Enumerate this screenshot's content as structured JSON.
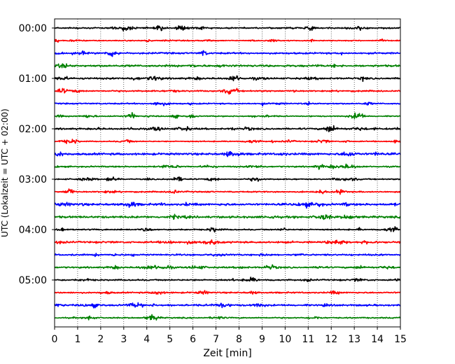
{
  "chart_data": {
    "type": "line",
    "title": "",
    "xlabel": "Zeit  [min]",
    "ylabel": "UTC (Lokalzeit = UTC + 02:00)",
    "xlim": [
      0,
      15
    ],
    "x_ticks": [
      0,
      1,
      2,
      3,
      4,
      5,
      6,
      7,
      8,
      9,
      10,
      11,
      12,
      13,
      14,
      15
    ],
    "x_grid": "vertical dotted lines at each minute",
    "y_ticks": [
      "00:00",
      "01:00",
      "02:00",
      "03:00",
      "04:00",
      "05:00"
    ],
    "trace_interval_min": 15,
    "trace_count": 24,
    "trace_colors_cycle": [
      "#000000",
      "#ff0000",
      "#0000ff",
      "#008000"
    ],
    "traces_start": [
      "00:00",
      "00:15",
      "00:30",
      "00:45",
      "01:00",
      "01:15",
      "01:30",
      "01:45",
      "02:00",
      "02:15",
      "02:30",
      "02:45",
      "03:00",
      "03:15",
      "03:30",
      "03:45",
      "04:00",
      "04:15",
      "04:30",
      "04:45",
      "05:00",
      "05:15",
      "05:30",
      "05:45"
    ],
    "events": [
      {
        "trace": "01:00",
        "x_min": 7.8,
        "note": "largest burst"
      },
      {
        "trace": "03:30",
        "x_min": 3.3
      },
      {
        "trace": "00:30",
        "x_min": 2.5
      }
    ]
  }
}
